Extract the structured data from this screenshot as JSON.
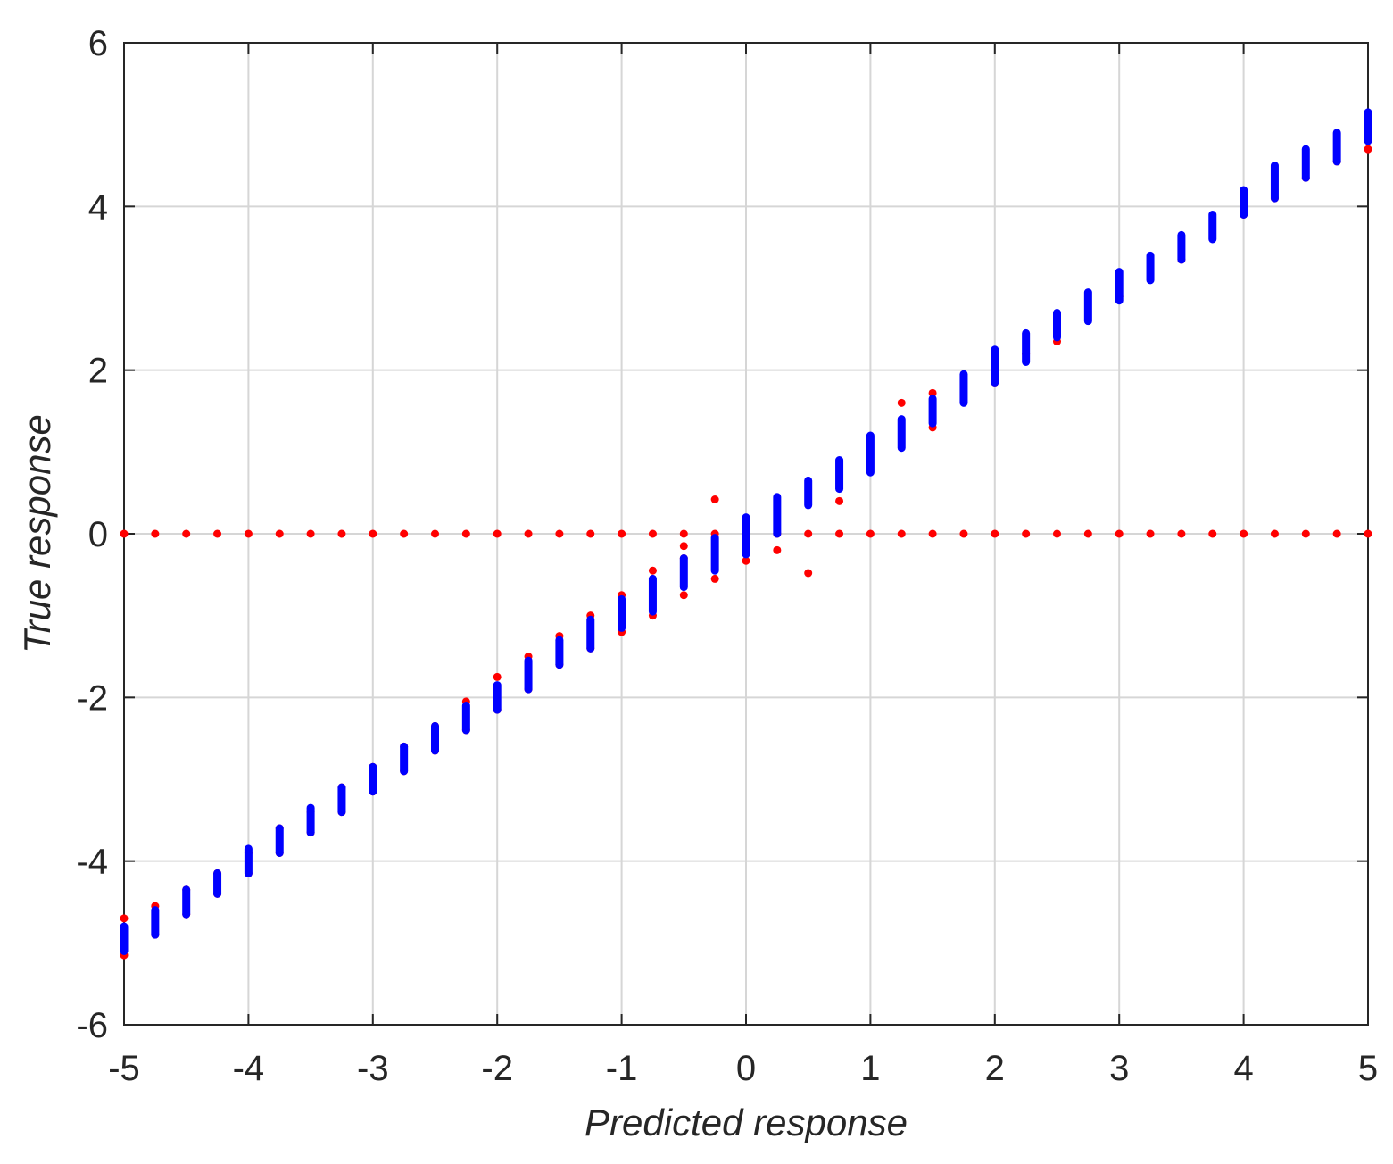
{
  "chart_data": {
    "type": "scatter",
    "title": "",
    "xlabel": "Predicted response",
    "ylabel": "True response",
    "xlim": [
      -5,
      5
    ],
    "ylim": [
      -6,
      6
    ],
    "x_ticks": [
      -5,
      -4,
      -3,
      -2,
      -1,
      0,
      1,
      2,
      3,
      4,
      5
    ],
    "y_ticks": [
      -6,
      -4,
      -2,
      0,
      2,
      4,
      6
    ],
    "x_tick_labels": [
      "-5",
      "-4",
      "-3",
      "-2",
      "-1",
      "0",
      "1",
      "2",
      "3",
      "4",
      "5"
    ],
    "y_tick_labels": [
      "-6",
      "-4",
      "-2",
      "0",
      "2",
      "4",
      "6"
    ],
    "grid": true,
    "legend": "none",
    "series": [
      {
        "color": "#ff0000",
        "marker": "dot",
        "points": [
          [
            -5,
            0
          ],
          [
            -4.75,
            0
          ],
          [
            -4.5,
            0
          ],
          [
            -4.25,
            0
          ],
          [
            -4,
            0
          ],
          [
            -3.75,
            0
          ],
          [
            -3.5,
            0
          ],
          [
            -3.25,
            0
          ],
          [
            -3,
            0
          ],
          [
            -2.75,
            0
          ],
          [
            -2.5,
            0
          ],
          [
            -2.25,
            0
          ],
          [
            -2,
            0
          ],
          [
            -1.75,
            0
          ],
          [
            -1.5,
            0
          ],
          [
            -1.25,
            0
          ],
          [
            -1,
            0
          ],
          [
            -0.75,
            0
          ],
          [
            -0.5,
            0
          ],
          [
            -0.25,
            0
          ],
          [
            0,
            0
          ],
          [
            0.25,
            0
          ],
          [
            0.5,
            0
          ],
          [
            0.75,
            0
          ],
          [
            1,
            0
          ],
          [
            1.25,
            0
          ],
          [
            1.5,
            0
          ],
          [
            1.75,
            0
          ],
          [
            2,
            0
          ],
          [
            2.25,
            0
          ],
          [
            2.5,
            0
          ],
          [
            2.75,
            0
          ],
          [
            3,
            0
          ],
          [
            3.25,
            0
          ],
          [
            3.5,
            0
          ],
          [
            3.75,
            0
          ],
          [
            4,
            0
          ],
          [
            4.25,
            0
          ],
          [
            4.5,
            0
          ],
          [
            4.75,
            0
          ],
          [
            5,
            0
          ],
          [
            -5,
            -4.7
          ],
          [
            -5,
            -5.15
          ],
          [
            -4.75,
            -4.55
          ],
          [
            -4.75,
            -4.9
          ],
          [
            -4.5,
            -4.35
          ],
          [
            -4.5,
            -4.65
          ],
          [
            -4.25,
            -4.15
          ],
          [
            -4.25,
            -4.4
          ],
          [
            -4,
            -3.9
          ],
          [
            -4,
            -4.15
          ],
          [
            -3.75,
            -3.6
          ],
          [
            -3.75,
            -3.9
          ],
          [
            -3.5,
            -3.4
          ],
          [
            -3.5,
            -3.65
          ],
          [
            -3.25,
            -3.1
          ],
          [
            -3.25,
            -3.4
          ],
          [
            -3,
            -2.85
          ],
          [
            -3,
            -3.15
          ],
          [
            -2.75,
            -2.6
          ],
          [
            -2.75,
            -2.9
          ],
          [
            -2.5,
            -2.35
          ],
          [
            -2.5,
            -2.65
          ],
          [
            -2.25,
            -2.05
          ],
          [
            -2.25,
            -2.4
          ],
          [
            -2,
            -1.75
          ],
          [
            -2,
            -2.15
          ],
          [
            -1.75,
            -1.5
          ],
          [
            -1.75,
            -1.9
          ],
          [
            -1.5,
            -1.25
          ],
          [
            -1.5,
            -1.6
          ],
          [
            -1.25,
            -1.0
          ],
          [
            -1.25,
            -1.4
          ],
          [
            -1,
            -0.75
          ],
          [
            -1,
            -1.2
          ],
          [
            -0.75,
            -0.45
          ],
          [
            -0.75,
            -1.0
          ],
          [
            -0.5,
            -0.15
          ],
          [
            -0.5,
            -0.3
          ],
          [
            -0.5,
            -0.75
          ],
          [
            -0.25,
            0.42
          ],
          [
            -0.25,
            -0.55
          ],
          [
            0,
            -0.33
          ],
          [
            0.25,
            -0.2
          ],
          [
            0.5,
            -0.48
          ],
          [
            0.75,
            0.4
          ],
          [
            1.25,
            1.6
          ],
          [
            1.5,
            1.72
          ],
          [
            1.5,
            1.3
          ],
          [
            2,
            1.85
          ],
          [
            2.25,
            2.2
          ],
          [
            2.5,
            2.35
          ],
          [
            3,
            2.9
          ],
          [
            3.5,
            3.35
          ],
          [
            4,
            3.9
          ],
          [
            4.25,
            4.1
          ],
          [
            4.5,
            4.35
          ],
          [
            4.75,
            4.55
          ],
          [
            5,
            4.7
          ]
        ]
      },
      {
        "color": "#0000ff",
        "marker": "vertical-cluster",
        "ranges": [
          [
            -5,
            -5.1,
            -4.8
          ],
          [
            -4.75,
            -4.9,
            -4.6
          ],
          [
            -4.5,
            -4.65,
            -4.35
          ],
          [
            -4.25,
            -4.4,
            -4.15
          ],
          [
            -4,
            -4.15,
            -3.85
          ],
          [
            -3.75,
            -3.9,
            -3.6
          ],
          [
            -3.5,
            -3.65,
            -3.35
          ],
          [
            -3.25,
            -3.4,
            -3.1
          ],
          [
            -3,
            -3.15,
            -2.85
          ],
          [
            -2.75,
            -2.9,
            -2.6
          ],
          [
            -2.5,
            -2.65,
            -2.35
          ],
          [
            -2.25,
            -2.4,
            -2.1
          ],
          [
            -2,
            -2.15,
            -1.85
          ],
          [
            -1.75,
            -1.9,
            -1.55
          ],
          [
            -1.5,
            -1.6,
            -1.3
          ],
          [
            -1.25,
            -1.4,
            -1.05
          ],
          [
            -1,
            -1.15,
            -0.8
          ],
          [
            -0.75,
            -0.95,
            -0.55
          ],
          [
            -0.5,
            -0.65,
            -0.3
          ],
          [
            -0.25,
            -0.45,
            -0.05
          ],
          [
            0,
            -0.25,
            0.2
          ],
          [
            0.25,
            0.0,
            0.45
          ],
          [
            0.5,
            0.35,
            0.65
          ],
          [
            0.75,
            0.55,
            0.9
          ],
          [
            1,
            0.75,
            1.2
          ],
          [
            1.25,
            1.05,
            1.4
          ],
          [
            1.5,
            1.35,
            1.65
          ],
          [
            1.75,
            1.6,
            1.95
          ],
          [
            2,
            1.85,
            2.25
          ],
          [
            2.25,
            2.1,
            2.45
          ],
          [
            2.5,
            2.4,
            2.7
          ],
          [
            2.75,
            2.6,
            2.95
          ],
          [
            3,
            2.85,
            3.2
          ],
          [
            3.25,
            3.1,
            3.4
          ],
          [
            3.5,
            3.35,
            3.65
          ],
          [
            3.75,
            3.6,
            3.9
          ],
          [
            4,
            3.9,
            4.2
          ],
          [
            4.25,
            4.1,
            4.5
          ],
          [
            4.5,
            4.35,
            4.7
          ],
          [
            4.75,
            4.55,
            4.9
          ],
          [
            5,
            4.8,
            5.15
          ]
        ]
      }
    ]
  }
}
